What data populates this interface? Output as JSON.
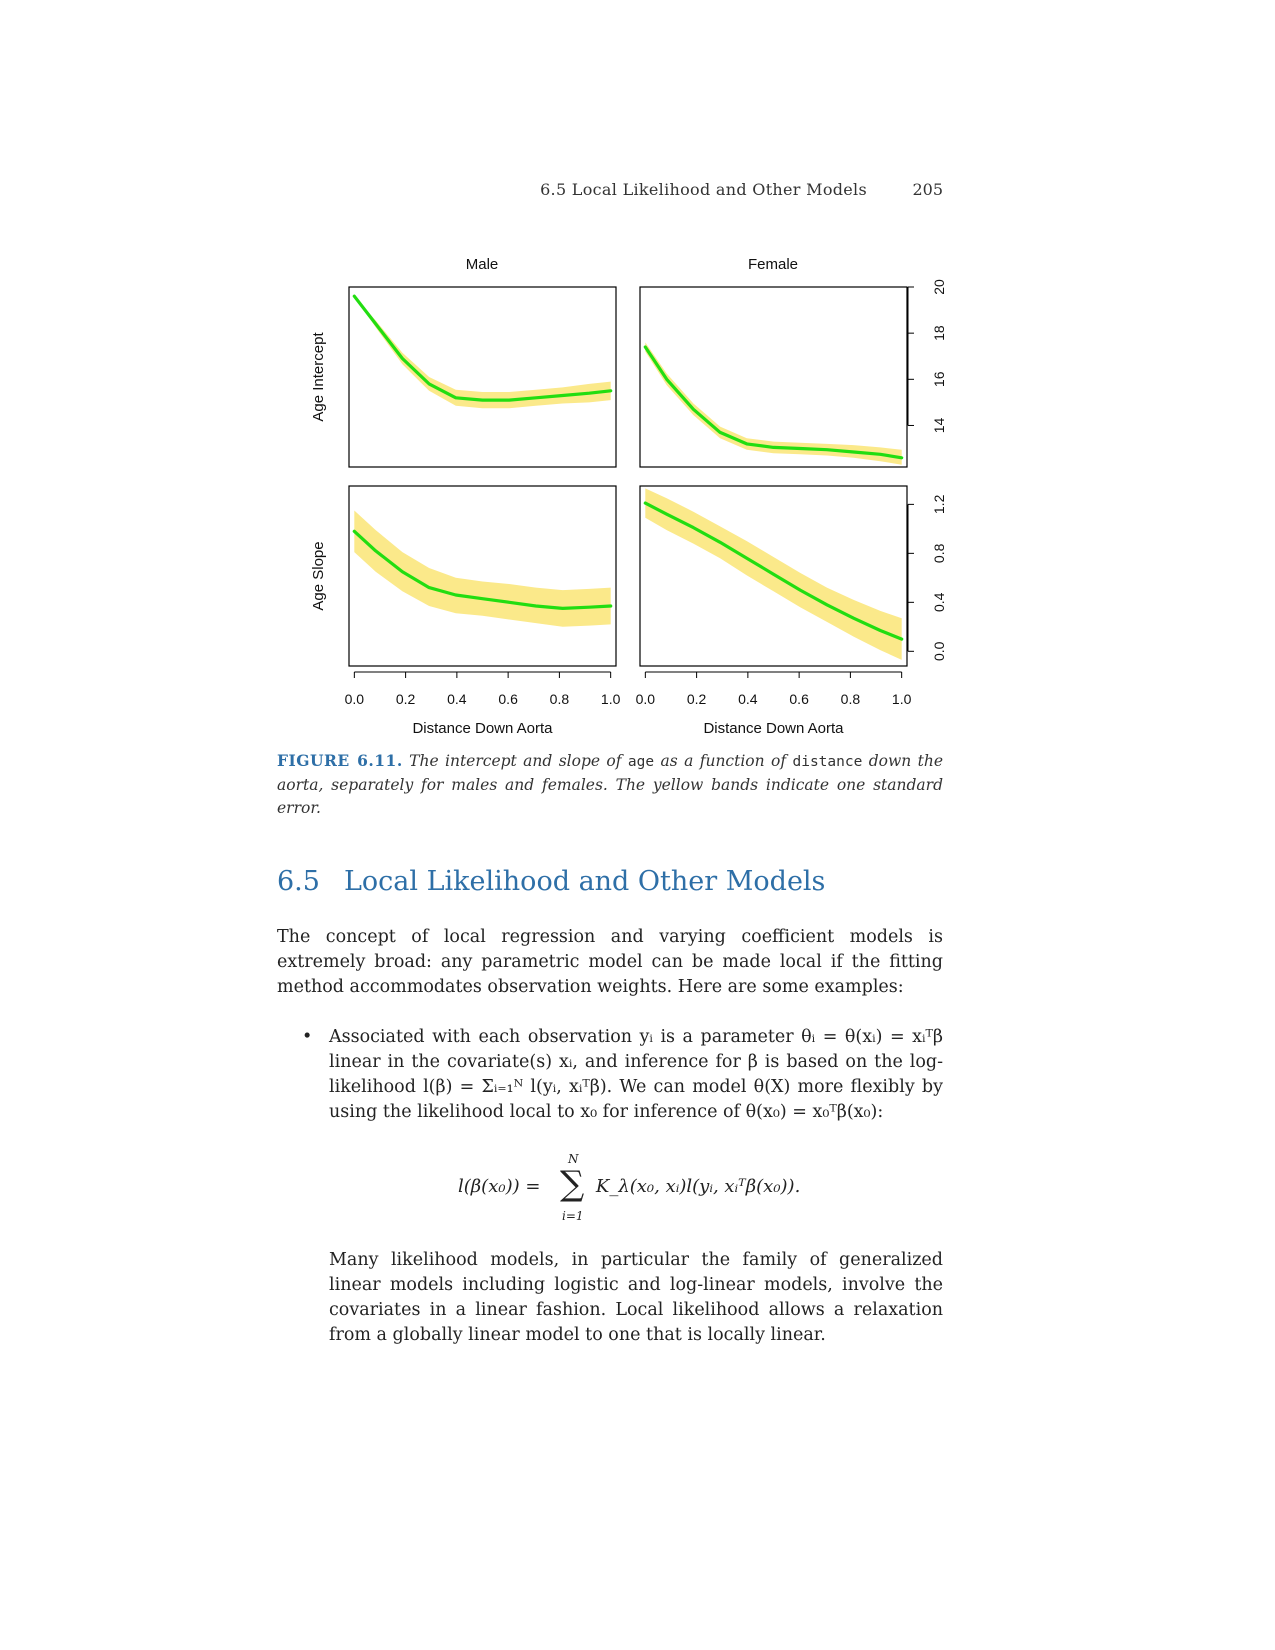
{
  "running_head": {
    "title": "6.5 Local Likelihood and Other Models",
    "page_number": "205"
  },
  "figure": {
    "panel_titles": [
      "Male",
      "Female"
    ],
    "row_labels": [
      "Age Intercept",
      "Age Slope"
    ],
    "xlabel": "Distance Down Aorta",
    "x_ticks": [
      "0.0",
      "0.2",
      "0.4",
      "0.6",
      "0.8",
      "1.0"
    ],
    "y_ticks_intercept": [
      "14",
      "16",
      "18",
      "20"
    ],
    "y_ticks_slope": [
      "0.0",
      "0.4",
      "0.8",
      "1.2"
    ],
    "colors": {
      "curve": "#22dd11",
      "band": "#fbe98a",
      "frame": "#000000"
    }
  },
  "chart_data": [
    {
      "type": "line",
      "title": "Male",
      "ylabel": "Age Intercept",
      "xlabel": "",
      "xlim": [
        0,
        1
      ],
      "ylim": [
        12.2,
        20
      ],
      "x": [
        0.02,
        0.1,
        0.2,
        0.3,
        0.4,
        0.5,
        0.6,
        0.7,
        0.8,
        0.9,
        0.98
      ],
      "series": [
        {
          "values": [
            19.6,
            18.4,
            16.9,
            15.8,
            15.2,
            15.1,
            15.1,
            15.2,
            15.3,
            15.4,
            15.5
          ]
        },
        {
          "values": [
            19.6,
            18.55,
            17.15,
            16.1,
            15.55,
            15.45,
            15.45,
            15.55,
            15.65,
            15.8,
            15.9
          ]
        },
        {
          "values": [
            19.6,
            18.25,
            16.65,
            15.5,
            14.85,
            14.75,
            14.75,
            14.85,
            14.95,
            15.0,
            15.1
          ]
        }
      ]
    },
    {
      "type": "line",
      "title": "Female",
      "ylabel": "",
      "xlabel": "",
      "xlim": [
        0,
        1
      ],
      "ylim": [
        12.2,
        20
      ],
      "x": [
        0.02,
        0.1,
        0.2,
        0.3,
        0.4,
        0.5,
        0.6,
        0.7,
        0.8,
        0.9,
        0.98
      ],
      "series": [
        {
          "values": [
            17.4,
            16.0,
            14.7,
            13.7,
            13.2,
            13.05,
            13.0,
            12.95,
            12.85,
            12.75,
            12.6
          ]
        },
        {
          "values": [
            17.6,
            16.25,
            14.95,
            13.95,
            13.45,
            13.3,
            13.25,
            13.2,
            13.15,
            13.05,
            12.95
          ]
        },
        {
          "values": [
            17.2,
            15.75,
            14.45,
            13.45,
            12.95,
            12.8,
            12.75,
            12.7,
            12.6,
            12.45,
            12.3
          ]
        }
      ]
    },
    {
      "type": "line",
      "title": "",
      "ylabel": "Age Slope",
      "xlabel": "Distance Down Aorta",
      "xlim": [
        0,
        1
      ],
      "ylim": [
        -0.12,
        1.35
      ],
      "x": [
        0.02,
        0.1,
        0.2,
        0.3,
        0.4,
        0.5,
        0.6,
        0.7,
        0.8,
        0.9,
        0.98
      ],
      "series": [
        {
          "values": [
            0.98,
            0.82,
            0.65,
            0.52,
            0.46,
            0.43,
            0.4,
            0.37,
            0.35,
            0.36,
            0.37
          ]
        },
        {
          "values": [
            1.15,
            0.99,
            0.81,
            0.68,
            0.6,
            0.57,
            0.55,
            0.52,
            0.5,
            0.51,
            0.52
          ]
        },
        {
          "values": [
            0.81,
            0.65,
            0.49,
            0.37,
            0.31,
            0.29,
            0.26,
            0.23,
            0.2,
            0.21,
            0.22
          ]
        }
      ]
    },
    {
      "type": "line",
      "title": "",
      "ylabel": "",
      "xlabel": "Distance Down Aorta",
      "xlim": [
        0,
        1
      ],
      "ylim": [
        -0.12,
        1.35
      ],
      "x": [
        0.02,
        0.1,
        0.2,
        0.3,
        0.4,
        0.5,
        0.6,
        0.7,
        0.8,
        0.9,
        0.98
      ],
      "series": [
        {
          "values": [
            1.21,
            1.12,
            1.01,
            0.89,
            0.76,
            0.63,
            0.5,
            0.38,
            0.27,
            0.17,
            0.1
          ]
        },
        {
          "values": [
            1.33,
            1.25,
            1.14,
            1.02,
            0.9,
            0.77,
            0.64,
            0.52,
            0.42,
            0.33,
            0.27
          ]
        },
        {
          "values": [
            1.09,
            0.99,
            0.88,
            0.76,
            0.62,
            0.49,
            0.36,
            0.24,
            0.12,
            0.01,
            -0.07
          ]
        }
      ]
    }
  ],
  "caption": {
    "label": "FIGURE 6.11.",
    "part1": "The intercept and slope of",
    "code1": "age",
    "part2": "as a function of",
    "code2": "distance",
    "part3": "down the aorta, separately for males and females. The yellow bands indicate one standard error."
  },
  "section": {
    "number": "6.5",
    "title": "Local Likelihood and Other Models"
  },
  "body": {
    "intro": "The concept of local regression and varying coefficient models is extremely broad: any parametric model can be made local if the fitting method accommodates observation weights. Here are some examples:",
    "bullet": "Associated with each observation yᵢ is a parameter θᵢ = θ(xᵢ) = xᵢᵀβ linear in the covariate(s) xᵢ, and inference for β is based on the log-likelihood l(β) = Σᵢ₌₁ᴺ l(yᵢ, xᵢᵀβ). We can model θ(X) more flexibly by using the likelihood local to x₀ for inference of θ(x₀) = x₀ᵀβ(x₀):",
    "equation_lhs": "l(β(x₀)) =",
    "equation_sum_upper": "N",
    "equation_sum_lower": "i=1",
    "equation_rhs": "K_λ(x₀, xᵢ)l(yᵢ, xᵢᵀβ(x₀)).",
    "closing": "Many likelihood models, in particular the family of generalized linear models including logistic and log-linear models, involve the covariates in a linear fashion. Local likelihood allows a relaxation from a globally linear model to one that is locally linear."
  }
}
